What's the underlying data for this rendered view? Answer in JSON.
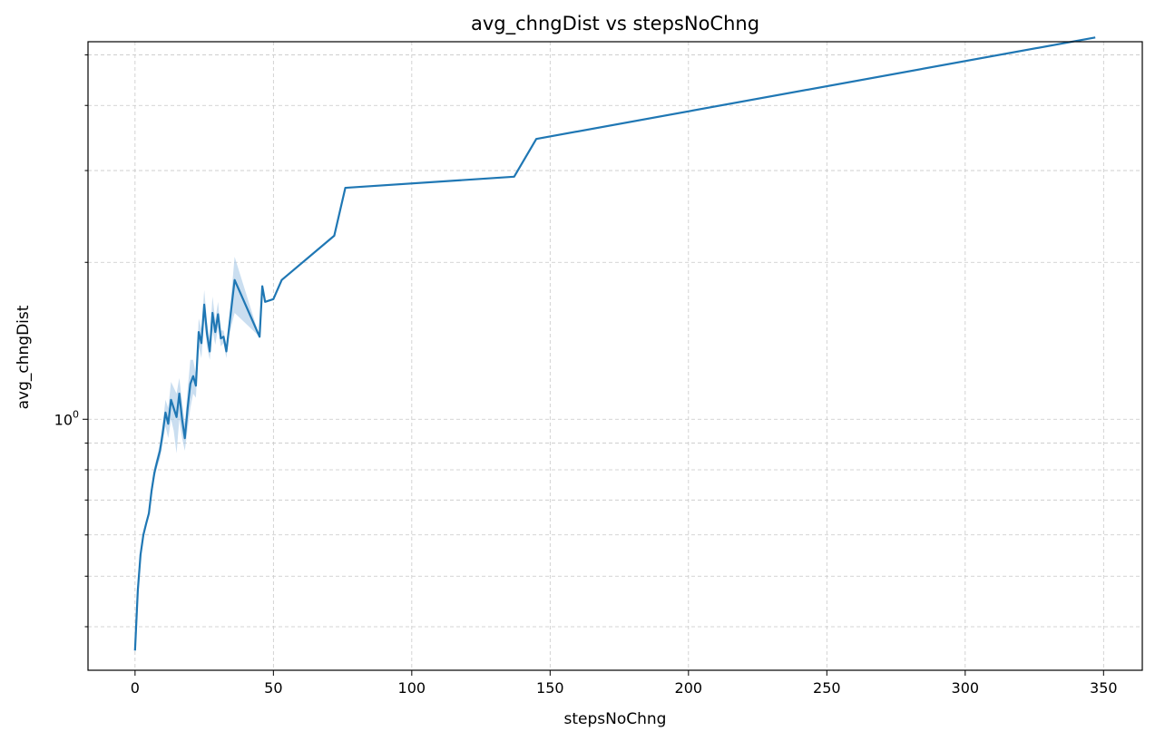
{
  "chart_data": {
    "type": "line",
    "title": "avg_chngDist vs stepsNoChng",
    "xlabel": "stepsNoChng",
    "ylabel": "avg_chngDist",
    "xlim": [
      -17,
      364
    ],
    "ylim": [
      0.33,
      5.3
    ],
    "yscale": "log",
    "grid": true,
    "x_ticks": [
      0,
      50,
      100,
      150,
      200,
      250,
      300,
      350
    ],
    "y_ticks": [
      {
        "value": 1,
        "base": "10",
        "exp": "0"
      }
    ],
    "colors": {
      "line": "#1f77b4",
      "band": "#a6c8e6",
      "grid": "#c8c8c8"
    },
    "series": [
      {
        "x": [
          0,
          1,
          2,
          3,
          4,
          5,
          6,
          7,
          8,
          9,
          10,
          11,
          12,
          13,
          14,
          15,
          16,
          17,
          18,
          19,
          20,
          21,
          22,
          23,
          24,
          25,
          26,
          27,
          28,
          29,
          30,
          31,
          32,
          33,
          34,
          36,
          45,
          46,
          47,
          50,
          53,
          72,
          76,
          137,
          145,
          347
        ],
        "y": [
          0.36,
          0.47,
          0.55,
          0.6,
          0.63,
          0.66,
          0.73,
          0.79,
          0.83,
          0.87,
          0.94,
          1.03,
          0.98,
          1.09,
          1.05,
          1.01,
          1.12,
          1.0,
          0.92,
          1.05,
          1.17,
          1.21,
          1.16,
          1.47,
          1.4,
          1.66,
          1.46,
          1.35,
          1.6,
          1.47,
          1.59,
          1.43,
          1.44,
          1.35,
          1.5,
          1.85,
          1.44,
          1.8,
          1.68,
          1.7,
          1.85,
          2.25,
          2.78,
          2.92,
          3.45,
          5.4
        ],
        "lower": [
          0.36,
          0.46,
          0.54,
          0.59,
          0.62,
          0.65,
          0.71,
          0.77,
          0.81,
          0.84,
          0.9,
          0.97,
          0.92,
          1.0,
          0.95,
          0.86,
          1.0,
          0.92,
          0.87,
          0.96,
          1.05,
          1.12,
          1.1,
          1.38,
          1.31,
          1.55,
          1.38,
          1.3,
          1.48,
          1.39,
          1.5,
          1.38,
          1.4,
          1.31,
          1.45,
          1.6,
          1.44,
          1.8,
          1.68,
          1.7,
          1.85,
          2.25,
          2.78,
          2.92,
          3.45,
          5.4
        ],
        "upper": [
          0.36,
          0.48,
          0.56,
          0.61,
          0.64,
          0.67,
          0.75,
          0.81,
          0.85,
          0.9,
          0.98,
          1.09,
          1.05,
          1.18,
          1.15,
          1.12,
          1.2,
          1.08,
          0.98,
          1.14,
          1.3,
          1.3,
          1.22,
          1.56,
          1.49,
          1.77,
          1.54,
          1.42,
          1.72,
          1.55,
          1.68,
          1.48,
          1.48,
          1.39,
          1.55,
          2.05,
          1.44,
          1.8,
          1.68,
          1.7,
          1.85,
          2.25,
          2.78,
          2.92,
          3.45,
          5.4
        ]
      }
    ]
  }
}
